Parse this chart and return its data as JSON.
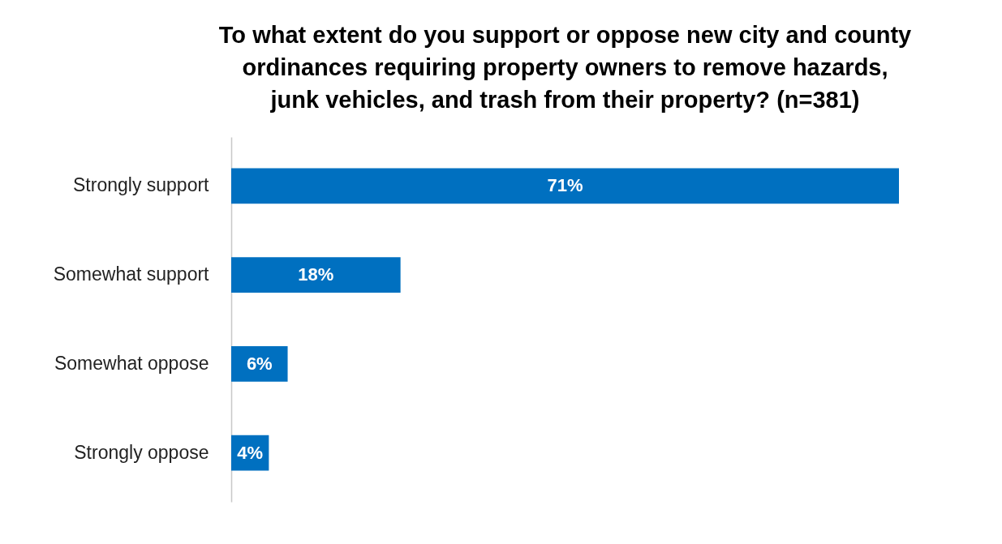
{
  "chart_data": {
    "type": "bar",
    "orientation": "horizontal",
    "title": "To what extent do you support or oppose new city and county\nordinances requiring property owners to remove hazards,\njunk vehicles, and trash from their property? (n=381)",
    "categories": [
      "Strongly support",
      "Somewhat support",
      "Somewhat oppose",
      "Strongly oppose"
    ],
    "values": [
      71,
      18,
      6,
      4
    ],
    "value_labels": [
      "71%",
      "18%",
      "6%",
      "4%"
    ],
    "color": "#0070c0",
    "grid": false
  }
}
